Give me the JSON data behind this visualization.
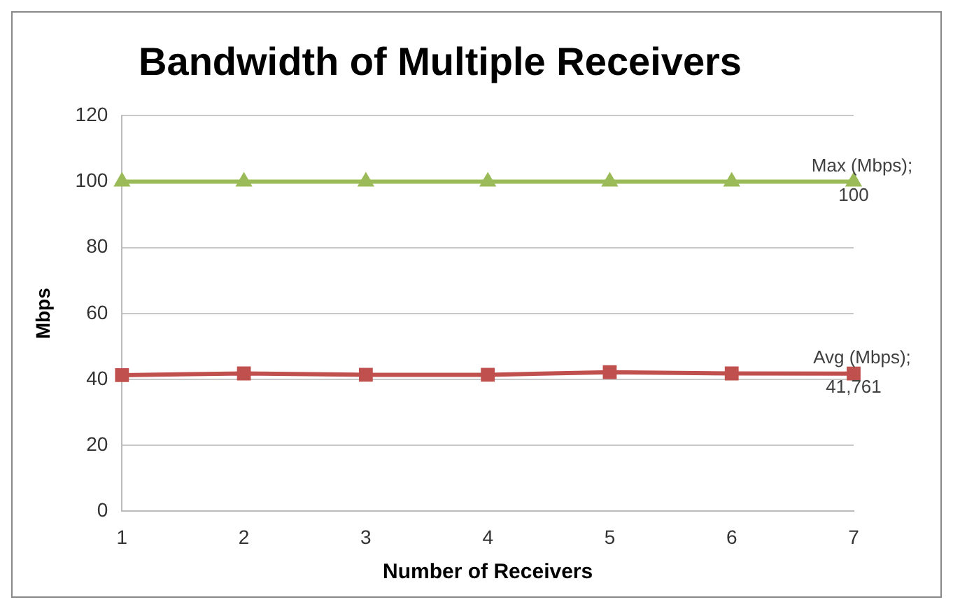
{
  "chart_data": {
    "type": "line",
    "title": "Bandwidth of Multiple Receivers",
    "xlabel": "Number of Receivers",
    "ylabel": "Mbps",
    "categories": [
      "1",
      "2",
      "3",
      "4",
      "5",
      "6",
      "7"
    ],
    "series": [
      {
        "color": "#9bbb59",
        "marker": "triangle",
        "values": [
          100,
          100,
          100,
          100,
          100,
          100,
          100
        ]
      },
      {
        "color": "#c0504d",
        "marker": "square",
        "values": [
          41.3,
          41.8,
          41.4,
          41.4,
          42.2,
          41.8,
          41.761
        ]
      }
    ],
    "annotations": [
      {
        "text": "Max (Mbps);\n100",
        "x": "7",
        "y": 100
      },
      {
        "text": "Avg (Mbps);\n41,761",
        "x": "7",
        "y": 41.761
      }
    ],
    "ylim": [
      0,
      120
    ],
    "yticks": [
      0,
      20,
      40,
      60,
      80,
      100,
      120
    ],
    "grid": "y",
    "legend": false
  }
}
